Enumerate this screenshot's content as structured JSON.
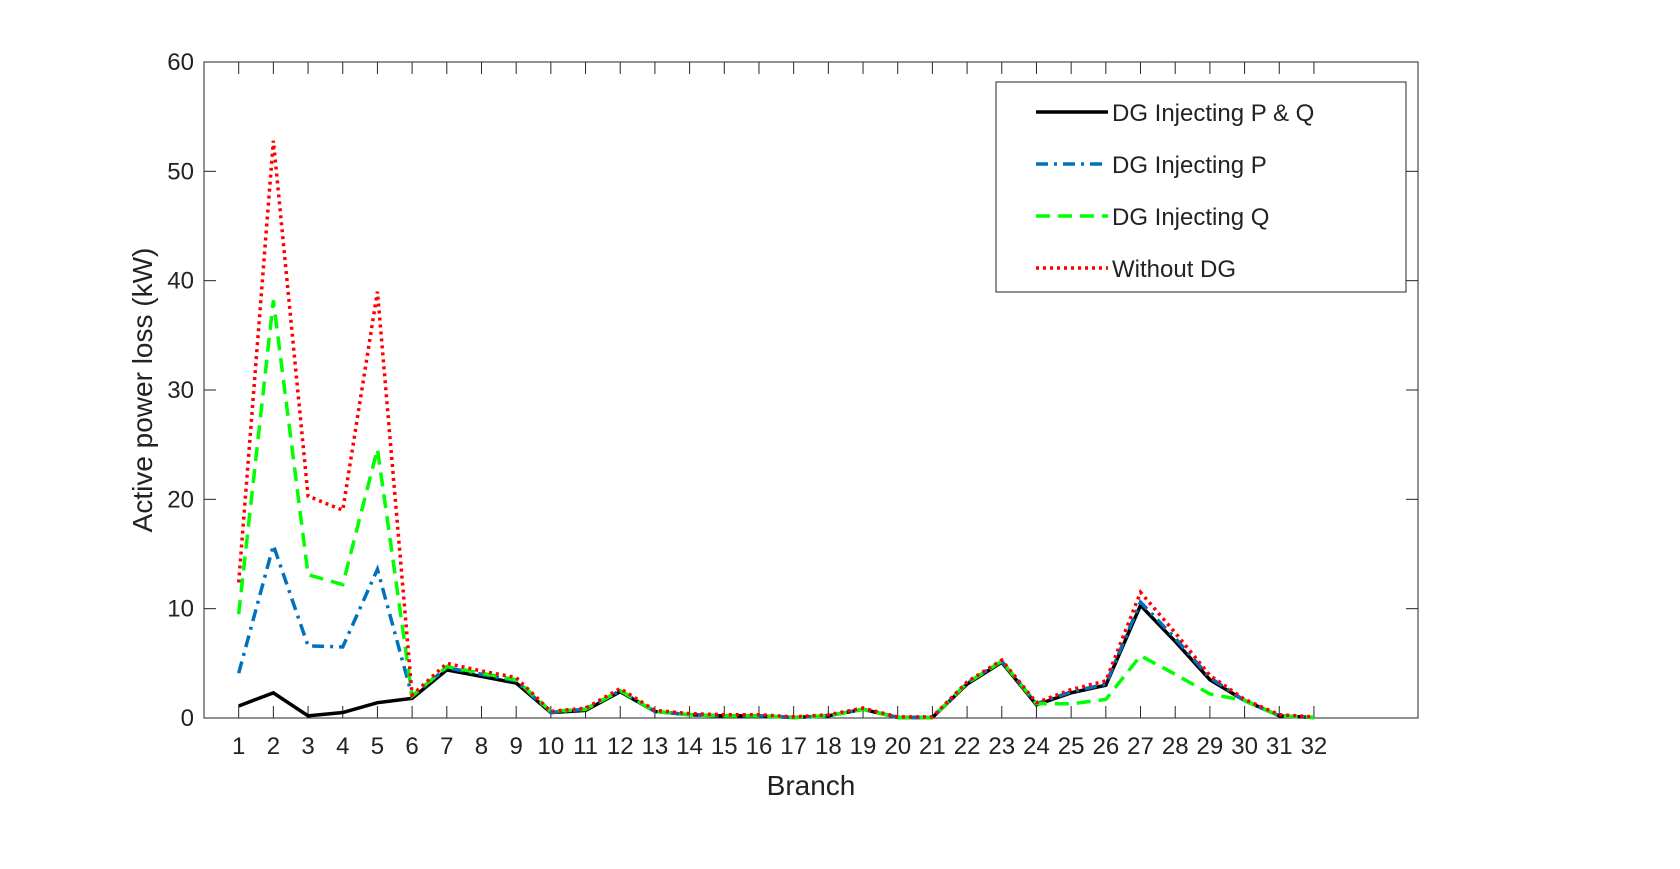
{
  "chart_data": {
    "type": "line",
    "xlabel": "Branch",
    "ylabel": "Active power loss (kW)",
    "x": [
      1,
      2,
      3,
      4,
      5,
      6,
      7,
      8,
      9,
      10,
      11,
      12,
      13,
      14,
      15,
      16,
      17,
      18,
      19,
      20,
      21,
      22,
      23,
      24,
      25,
      26,
      27,
      28,
      29,
      30,
      31,
      32
    ],
    "xlim": [
      0,
      35
    ],
    "xticks": [
      1,
      2,
      3,
      4,
      5,
      6,
      7,
      8,
      9,
      10,
      11,
      12,
      13,
      14,
      15,
      16,
      17,
      18,
      19,
      20,
      21,
      22,
      23,
      24,
      25,
      26,
      27,
      28,
      29,
      30,
      31,
      32
    ],
    "ylim": [
      0,
      60
    ],
    "yticks": [
      0,
      10,
      20,
      30,
      40,
      50,
      60
    ],
    "legend": "top-right",
    "series": [
      {
        "name": "DG Injecting P & Q",
        "color": "#000000",
        "linestyle": "solid",
        "values": [
          1.1,
          2.3,
          0.2,
          0.5,
          1.4,
          1.8,
          4.4,
          3.8,
          3.2,
          0.5,
          0.7,
          2.4,
          0.6,
          0.3,
          0.2,
          0.2,
          0.05,
          0.2,
          0.8,
          0.05,
          0.05,
          3.1,
          5.1,
          1.2,
          2.3,
          3.0,
          10.3,
          7.0,
          3.5,
          1.6,
          0.2,
          0.05
        ]
      },
      {
        "name": "DG Injecting P",
        "color": "#0072bd",
        "linestyle": "dashdot",
        "values": [
          4.1,
          15.8,
          6.6,
          6.5,
          13.6,
          2.0,
          4.6,
          4.0,
          3.4,
          0.5,
          0.8,
          2.5,
          0.6,
          0.3,
          0.2,
          0.2,
          0.05,
          0.2,
          0.8,
          0.05,
          0.05,
          3.2,
          5.2,
          1.3,
          2.4,
          3.1,
          10.6,
          7.3,
          3.7,
          1.6,
          0.2,
          0.05
        ]
      },
      {
        "name": "DG Injecting Q",
        "color": "#00ff00",
        "linestyle": "dashed",
        "values": [
          9.5,
          38.2,
          13.1,
          12.2,
          24.6,
          2.0,
          4.7,
          4.1,
          3.5,
          0.6,
          0.8,
          2.5,
          0.6,
          0.3,
          0.2,
          0.2,
          0.05,
          0.2,
          0.8,
          0.05,
          0.05,
          3.2,
          5.2,
          1.3,
          1.3,
          1.7,
          5.7,
          4.0,
          2.2,
          1.6,
          0.2,
          0.05
        ]
      },
      {
        "name": "Without DG",
        "color": "#ff0000",
        "linestyle": "dotted",
        "values": [
          12.4,
          52.8,
          20.3,
          19.0,
          39.0,
          2.1,
          5.0,
          4.3,
          3.7,
          0.6,
          0.9,
          2.7,
          0.7,
          0.4,
          0.3,
          0.3,
          0.1,
          0.3,
          0.9,
          0.1,
          0.1,
          3.3,
          5.3,
          1.4,
          2.6,
          3.4,
          11.5,
          7.8,
          3.9,
          1.7,
          0.3,
          0.1
        ]
      }
    ]
  }
}
